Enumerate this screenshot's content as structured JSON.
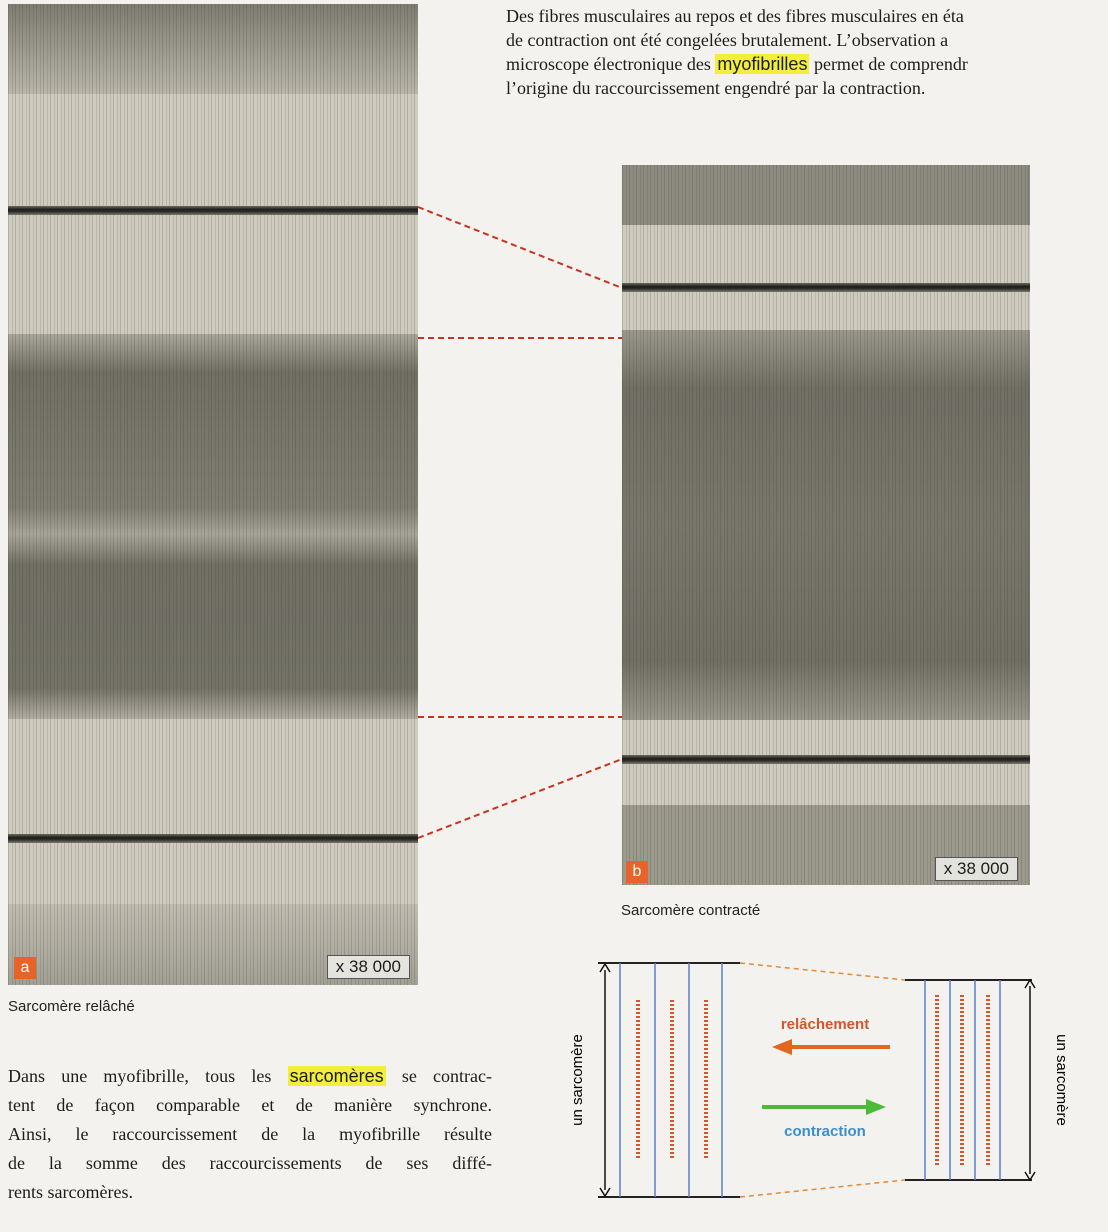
{
  "intro": {
    "lines": [
      [
        "Des fibres musculaires au repos et des fibres musculaires en éta"
      ],
      [
        "de contraction ont été congelées brutalement. L’observation a"
      ],
      [
        "microscope électronique des ",
        {
          "text": "myofibrilles",
          "highlight": true
        },
        " permet de comprendr"
      ],
      [
        "l’origine du raccourcissement engendré par la contraction."
      ]
    ]
  },
  "figure_a": {
    "label": "a",
    "magnification": "x 38 000",
    "caption": "Sarcomère relâché"
  },
  "figure_b": {
    "label": "b",
    "magnification": "x 38 000",
    "caption": "Sarcomère contracté"
  },
  "conclusion": {
    "lines": [
      [
        "Dans une myofibrille, tous les ",
        {
          "text": "sarcomères",
          "highlight": true
        },
        " se contrac-"
      ],
      [
        "tent de façon comparable et de manière synchrone."
      ],
      [
        "Ainsi, le raccourcissement de la myofibrille résulte"
      ],
      [
        "de la somme des raccourcissements de ses diffé-"
      ],
      [
        "rents sarcomères."
      ]
    ]
  },
  "diagram": {
    "left_label": "un sarcomère",
    "right_label": "un sarcomère",
    "arrow_top": "relâchement",
    "arrow_bottom": "contraction"
  }
}
